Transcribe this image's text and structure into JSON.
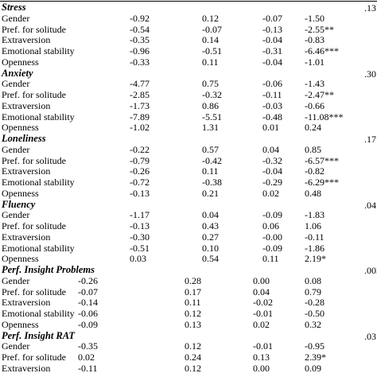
{
  "table": {
    "sections": [
      {
        "title": "Stress",
        "r2": ".13",
        "rows": [
          [
            "Gender",
            "-0.92",
            "0.12",
            "-0.07",
            "-1.50"
          ],
          [
            "Pref. for solitude",
            "-0.54",
            "-0.07",
            "-0.13",
            "-2.55**"
          ],
          [
            "Extraversion",
            "-0.35",
            "0.14",
            "-0.04",
            "-0.83"
          ],
          [
            "Emotional stability",
            "-0.96",
            "-0.51",
            "-0.31",
            "-6.46***"
          ],
          [
            "Openness",
            "-0.33",
            "0.11",
            "-0.04",
            "-1.01"
          ]
        ]
      },
      {
        "title": "Anxiety",
        "r2": ".30",
        "rows": [
          [
            "Gender",
            "-4.77",
            "0.75",
            "-0.06",
            "-1.43"
          ],
          [
            "Pref. for solitude",
            "-2.85",
            "-0.32",
            "-0.11",
            "-2.47**"
          ],
          [
            "Extraversion",
            "-1.73",
            "0.86",
            "-0.03",
            "-0.66"
          ],
          [
            "Emotional stability",
            "-7.89",
            "-5.51",
            "-0.48",
            "-11.08***"
          ],
          [
            "Openness",
            "-1.02",
            "1.31",
            "0.01",
            "0.24"
          ]
        ]
      },
      {
        "title": "Loneliness",
        "r2": ".17",
        "rows": [
          [
            "Gender",
            "-0.22",
            "0.57",
            "0.04",
            "0.85"
          ],
          [
            "Pref. for solitude",
            "-0.79",
            "-0.42",
            "-0.32",
            "-6.57***"
          ],
          [
            "Extraversion",
            "-0.26",
            "0.11",
            "-0.04",
            "-0.82"
          ],
          [
            "Emotional stability",
            "-0.72",
            "-0.38",
            "-0.29",
            "-6.29***"
          ],
          [
            "Openness",
            "-0.13",
            "0.21",
            "0.02",
            "0.48"
          ]
        ]
      },
      {
        "title": "Fluency",
        "r2": ".04",
        "rows": [
          [
            "Gender",
            "-1.17",
            "0.04",
            "-0.09",
            "-1.83"
          ],
          [
            "Pref. for solitude",
            "-0.13",
            "0.43",
            "0.06",
            "1.06"
          ],
          [
            "Extraversion",
            "-0.30",
            "0.27",
            "-0.00",
            "-0.11"
          ],
          [
            "Emotional stability",
            "-0.51",
            "0.10",
            "-0.09",
            "-1.86"
          ],
          [
            "Openness",
            "0.03",
            "0.54",
            "0.11",
            "2.19*"
          ]
        ]
      },
      {
        "title": "Perf. Insight Problems",
        "r2": ".005",
        "rows": [
          [
            "Gender",
            "-0.26",
            "0.28",
            "0.00",
            "0.08"
          ],
          [
            "Pref. for solitude",
            "-0.07",
            "0.17",
            "0.04",
            "0.79"
          ],
          [
            "Extraversion",
            "-0.14",
            "0.11",
            "-0.02",
            "-0.28"
          ],
          [
            "Emotional stability",
            "-0.06",
            "0.12",
            "-0.01",
            "-0.50"
          ],
          [
            "Openness",
            "-0.09",
            "0.13",
            "0.02",
            "0.32"
          ]
        ]
      },
      {
        "title": "Perf. Insight RAT",
        "r2": ".03",
        "rows": [
          [
            "Gender",
            "-0.35",
            "0.12",
            "-0.01",
            "-0.95"
          ],
          [
            "Pref. for solitude",
            "0.02",
            "0.24",
            "0.13",
            "2.39*"
          ],
          [
            "Extraversion",
            "-0.11",
            "0.12",
            "0.00",
            "0.09"
          ]
        ]
      }
    ]
  }
}
